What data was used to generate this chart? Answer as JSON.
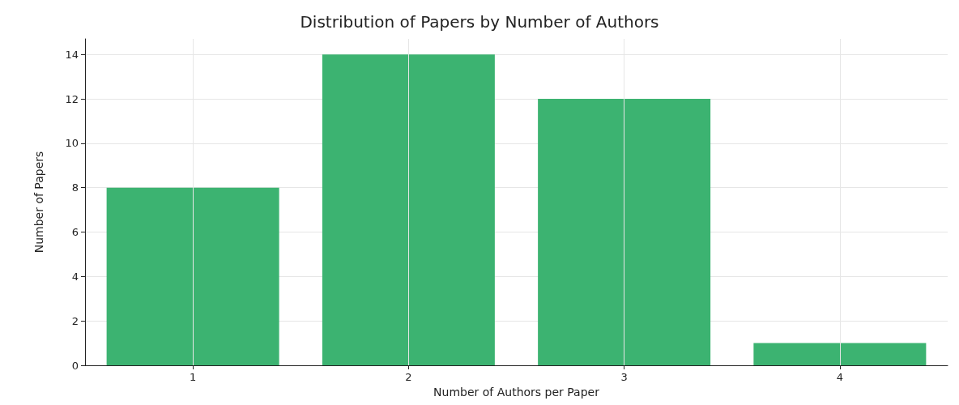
{
  "chart_data": {
    "type": "bar",
    "title": "Distribution of Papers by Number of Authors",
    "xlabel": "Number of Authors per Paper",
    "ylabel": "Number of Papers",
    "categories": [
      "1",
      "2",
      "3",
      "4"
    ],
    "values": [
      8,
      14,
      12,
      1
    ],
    "color": "#3cb371",
    "ylim": [
      0,
      14.7
    ],
    "yticks": [
      0,
      2,
      4,
      6,
      8,
      10,
      12,
      14
    ],
    "grid": true
  }
}
